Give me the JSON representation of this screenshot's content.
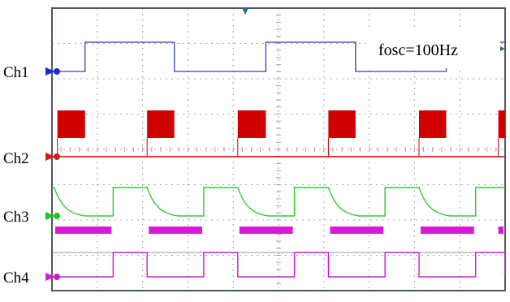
{
  "annotation": {
    "frequency_label": "fosc=100Hz"
  },
  "channels": [
    {
      "id": "ch1",
      "label": "Ch1",
      "marker_color": "#1a2bd6",
      "trace_color": "#3b3fb0",
      "trace": {
        "kind": "square",
        "edges": [
          [
            0,
            "lo"
          ],
          [
            0.073,
            "hi"
          ],
          [
            0.27,
            "lo"
          ],
          [
            0.472,
            "hi"
          ],
          [
            0.67,
            "lo"
          ],
          [
            0.87,
            "hi"
          ],
          [
            1.0,
            "hi"
          ]
        ]
      }
    },
    {
      "id": "ch2",
      "label": "Ch2",
      "marker_color": "#d91a1a",
      "trace_color": "#d00000",
      "trace": {
        "kind": "burst",
        "bursts": [
          [
            0.012,
            0.073
          ],
          [
            0.21,
            0.27
          ],
          [
            0.41,
            0.472
          ],
          [
            0.61,
            0.67
          ],
          [
            0.81,
            0.87
          ],
          [
            0.985,
            1.0
          ]
        ]
      }
    },
    {
      "id": "ch3",
      "label": "Ch3",
      "marker_color": "#22c422",
      "trace_color": "#33cc33",
      "trace": {
        "kind": "decay",
        "fall_points": [
          0.005,
          0.21,
          0.41,
          0.61,
          0.81
        ],
        "rise_points": [
          0.135,
          0.335,
          0.535,
          0.735,
          0.935
        ]
      }
    },
    {
      "id": "ch4",
      "label": "Ch4",
      "marker_color": "#d41bd4",
      "trace_color": "#d61ad6",
      "trace": {
        "kind": "square_pair",
        "edges": [
          0.005,
          0.135,
          0.21,
          0.335,
          0.41,
          0.535,
          0.61,
          0.735,
          0.81,
          0.935
        ]
      }
    }
  ],
  "colors": {
    "grid": "#9aa6b0",
    "border": "#4b5a66",
    "top_marker": "#2a6a8a",
    "bg": "#ffffff"
  }
}
